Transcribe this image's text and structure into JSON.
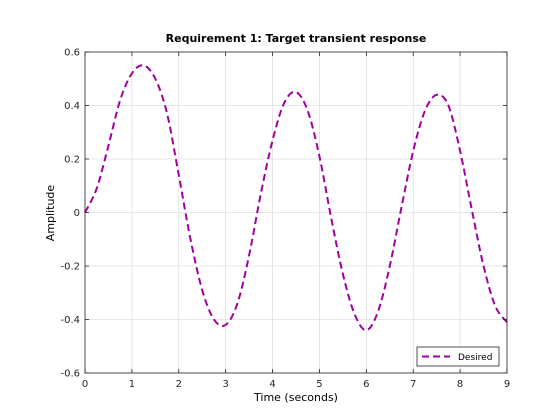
{
  "chart_data": {
    "type": "line",
    "title": "Requirement 1: Target transient response",
    "xlabel": "Time (seconds)",
    "ylabel": "Amplitude",
    "xlim": [
      0,
      9
    ],
    "ylim": [
      -0.6,
      0.6
    ],
    "xticks": [
      0,
      1,
      2,
      3,
      4,
      5,
      6,
      7,
      8,
      9
    ],
    "xtick_labels": [
      "0",
      "1",
      "2",
      "3",
      "4",
      "5",
      "6",
      "7",
      "8",
      "9"
    ],
    "yticks": [
      -0.6,
      -0.4,
      -0.2,
      0,
      0.2,
      0.4,
      0.6
    ],
    "ytick_labels": [
      "-0.6",
      "-0.4",
      "-0.2",
      "0",
      "0.2",
      "0.4",
      "0.6"
    ],
    "grid": true,
    "legend_position": "bottom-right",
    "series": [
      {
        "name": "Desired",
        "color": "#a000a0",
        "line_style": "dashed",
        "x": [
          0,
          0.25,
          0.5,
          0.75,
          1.0,
          1.25,
          1.5,
          1.75,
          2.0,
          2.25,
          2.5,
          2.75,
          3.0,
          3.25,
          3.5,
          3.75,
          4.0,
          4.25,
          4.5,
          4.75,
          5.0,
          5.25,
          5.5,
          5.75,
          6.0,
          6.25,
          6.5,
          6.75,
          7.0,
          7.25,
          7.5,
          7.75,
          8.0,
          8.25,
          8.5,
          8.75,
          9.0
        ],
        "y": [
          0.0,
          0.09,
          0.25,
          0.42,
          0.52,
          0.55,
          0.5,
          0.37,
          0.14,
          -0.1,
          -0.29,
          -0.4,
          -0.42,
          -0.34,
          -0.16,
          0.07,
          0.27,
          0.41,
          0.45,
          0.38,
          0.21,
          -0.02,
          -0.23,
          -0.38,
          -0.44,
          -0.37,
          -0.2,
          0.02,
          0.23,
          0.38,
          0.44,
          0.4,
          0.23,
          0.01,
          -0.2,
          -0.35,
          -0.41
        ]
      }
    ]
  }
}
